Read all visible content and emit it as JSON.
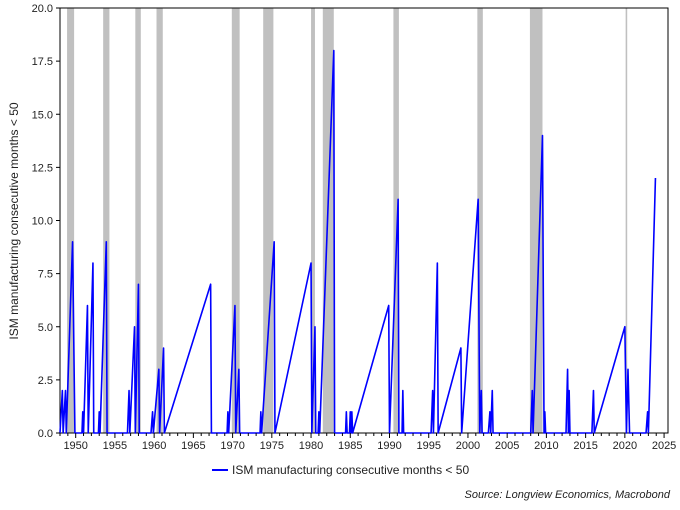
{
  "chart_data": {
    "type": "line",
    "ylabel": "ISM manufacturing consecutive months < 50",
    "xlim": [
      1948.0,
      2025.5
    ],
    "ylim": [
      0,
      20
    ],
    "xticks": [
      1950,
      1955,
      1960,
      1965,
      1970,
      1975,
      1980,
      1985,
      1990,
      1995,
      2000,
      2005,
      2010,
      2015,
      2020,
      2025
    ],
    "yticks": [
      0,
      2.5,
      5,
      7.5,
      10,
      12.5,
      15,
      17.5,
      20
    ],
    "ytick_labels": [
      "0.0",
      "2.5",
      "5.0",
      "7.5",
      "10.0",
      "12.5",
      "15.0",
      "17.5",
      "20.0"
    ],
    "grid": false,
    "legend_position": "bottom-center",
    "recessions": [
      [
        1948.9,
        1949.8
      ],
      [
        1953.5,
        1954.3
      ],
      [
        1957.6,
        1958.3
      ],
      [
        1960.3,
        1961.1
      ],
      [
        1969.9,
        1970.9
      ],
      [
        1973.9,
        1975.2
      ],
      [
        1980.0,
        1980.5
      ],
      [
        1981.5,
        1982.9
      ],
      [
        1990.5,
        1991.2
      ],
      [
        2001.2,
        2001.9
      ],
      [
        2007.9,
        2009.5
      ],
      [
        2020.1,
        2020.3
      ]
    ],
    "series": [
      {
        "name": "ISM manufacturing consecutive months < 50",
        "color": "#0000ff",
        "points": [
          [
            1948.0,
            0
          ],
          [
            1948.3,
            2
          ],
          [
            1948.4,
            0
          ],
          [
            1948.7,
            2
          ],
          [
            1948.8,
            0
          ],
          [
            1949.6,
            9
          ],
          [
            1949.9,
            0
          ],
          [
            1950.8,
            0
          ],
          [
            1950.9,
            1
          ],
          [
            1951.0,
            0
          ],
          [
            1951.5,
            6
          ],
          [
            1951.6,
            0
          ],
          [
            1952.2,
            8
          ],
          [
            1952.3,
            0
          ],
          [
            1952.9,
            0
          ],
          [
            1953.0,
            1
          ],
          [
            1953.1,
            0
          ],
          [
            1953.9,
            9
          ],
          [
            1954.0,
            0
          ],
          [
            1956.6,
            0
          ],
          [
            1956.8,
            2
          ],
          [
            1956.9,
            0
          ],
          [
            1957.5,
            5
          ],
          [
            1957.6,
            0
          ],
          [
            1958.0,
            7
          ],
          [
            1958.1,
            0
          ],
          [
            1959.6,
            0
          ],
          [
            1959.8,
            1
          ],
          [
            1959.9,
            0
          ],
          [
            1960.6,
            3
          ],
          [
            1960.7,
            0
          ],
          [
            1961.2,
            4
          ],
          [
            1961.3,
            0
          ],
          [
            1967.2,
            7
          ],
          [
            1967.3,
            0
          ],
          [
            1969.3,
            0
          ],
          [
            1969.4,
            1
          ],
          [
            1969.5,
            0
          ],
          [
            1970.3,
            6
          ],
          [
            1970.4,
            0
          ],
          [
            1970.8,
            3
          ],
          [
            1970.9,
            0
          ],
          [
            1973.5,
            0
          ],
          [
            1973.6,
            1
          ],
          [
            1973.7,
            0
          ],
          [
            1975.3,
            9
          ],
          [
            1975.4,
            0
          ],
          [
            1980.0,
            8
          ],
          [
            1980.1,
            0
          ],
          [
            1980.5,
            5
          ],
          [
            1980.6,
            0
          ],
          [
            1980.9,
            0
          ],
          [
            1981.0,
            1
          ],
          [
            1981.1,
            0
          ],
          [
            1982.9,
            18
          ],
          [
            1983.0,
            0
          ],
          [
            1984.4,
            0
          ],
          [
            1984.5,
            1
          ],
          [
            1984.6,
            0
          ],
          [
            1984.9,
            0
          ],
          [
            1985.0,
            1
          ],
          [
            1985.1,
            0
          ],
          [
            1985.2,
            1
          ],
          [
            1985.3,
            0
          ],
          [
            1989.9,
            6
          ],
          [
            1990.0,
            0
          ],
          [
            1991.1,
            11
          ],
          [
            1991.2,
            0
          ],
          [
            1991.6,
            0
          ],
          [
            1991.7,
            2
          ],
          [
            1991.8,
            0
          ],
          [
            1995.3,
            0
          ],
          [
            1995.5,
            2
          ],
          [
            1995.6,
            0
          ],
          [
            1996.1,
            8
          ],
          [
            1996.2,
            0
          ],
          [
            1999.1,
            4
          ],
          [
            1999.2,
            0
          ],
          [
            2001.3,
            11
          ],
          [
            2001.5,
            0
          ],
          [
            2001.7,
            2
          ],
          [
            2001.8,
            0
          ],
          [
            2002.6,
            0
          ],
          [
            2002.8,
            1
          ],
          [
            2002.9,
            0
          ],
          [
            2003.1,
            2
          ],
          [
            2003.2,
            0
          ],
          [
            2008.0,
            0
          ],
          [
            2008.2,
            2
          ],
          [
            2008.3,
            0
          ],
          [
            2009.5,
            14
          ],
          [
            2009.7,
            0
          ],
          [
            2009.8,
            1
          ],
          [
            2009.9,
            0
          ],
          [
            2012.5,
            0
          ],
          [
            2012.7,
            3
          ],
          [
            2012.8,
            0
          ],
          [
            2012.9,
            2
          ],
          [
            2013.0,
            0
          ],
          [
            2015.8,
            0
          ],
          [
            2016.0,
            2
          ],
          [
            2016.1,
            0
          ],
          [
            2020.0,
            5
          ],
          [
            2020.2,
            0
          ],
          [
            2020.4,
            3
          ],
          [
            2020.6,
            0
          ],
          [
            2022.7,
            0
          ],
          [
            2022.9,
            1
          ],
          [
            2023.0,
            0
          ],
          [
            2023.9,
            12
          ]
        ]
      }
    ],
    "source": "Source: Longview Economics, Macrobond"
  }
}
